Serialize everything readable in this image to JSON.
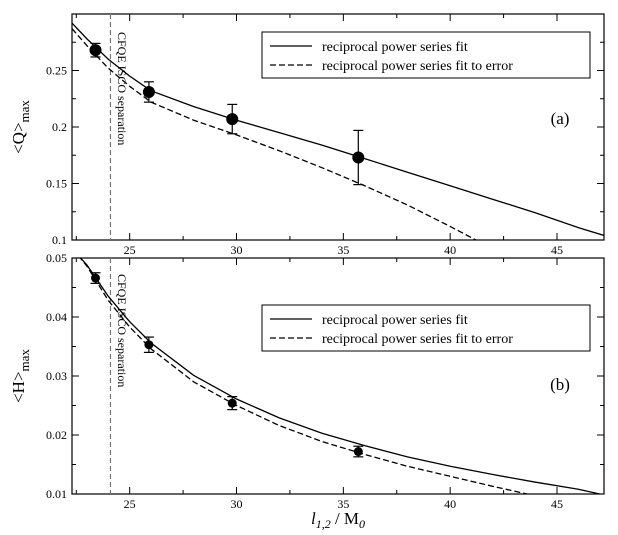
{
  "chart_data": [
    {
      "type": "line",
      "panel_label": "(a)",
      "ylabel": "<Q>",
      "ylabel_sub": "max",
      "xlim": [
        22.3,
        47.2
      ],
      "ylim": [
        0.1,
        0.3
      ],
      "xticks": [
        25,
        30,
        35,
        40,
        45
      ],
      "yticks": [
        0.1,
        0.15,
        0.2,
        0.25
      ],
      "ytick_labels": [
        "0.1",
        "0.15",
        "0.2",
        "0.25"
      ],
      "legend_position": "top-right",
      "vline": {
        "x": 24.1,
        "label": "CFQE ISCO separation"
      },
      "series": [
        {
          "name": "reciprocal power series fit",
          "style": "solid",
          "x": [
            22.3,
            23.0,
            24.0,
            25.0,
            26.0,
            28.0,
            30.0,
            32.0,
            34.0,
            36.0,
            38.0,
            40.0,
            42.0,
            44.0,
            46.0,
            47.2
          ],
          "y": [
            0.292,
            0.278,
            0.26,
            0.245,
            0.232,
            0.218,
            0.206,
            0.195,
            0.184,
            0.172,
            0.16,
            0.148,
            0.136,
            0.124,
            0.111,
            0.104
          ]
        },
        {
          "name": "reciprocal power series fit to error",
          "style": "dashed",
          "x": [
            22.3,
            23.0,
            24.0,
            25.0,
            26.0,
            28.0,
            30.0,
            32.0,
            34.0,
            36.0,
            38.0,
            40.0,
            41.2
          ],
          "y": [
            0.287,
            0.272,
            0.252,
            0.236,
            0.222,
            0.206,
            0.193,
            0.179,
            0.164,
            0.148,
            0.131,
            0.112,
            0.1
          ]
        }
      ],
      "points": [
        {
          "x": 23.4,
          "y": 0.268,
          "err": 0.006
        },
        {
          "x": 25.9,
          "y": 0.231,
          "err": 0.009
        },
        {
          "x": 29.8,
          "y": 0.207,
          "err": 0.013
        },
        {
          "x": 35.7,
          "y": 0.173,
          "err": 0.024
        }
      ]
    },
    {
      "type": "line",
      "panel_label": "(b)",
      "ylabel": "<H>",
      "ylabel_sub": "max",
      "xlabel": "l",
      "xlabel_sub": "1,2",
      "xlabel_mid": " / M",
      "xlabel_sub2": "0",
      "xlim": [
        22.3,
        47.2
      ],
      "ylim": [
        0.01,
        0.05
      ],
      "xticks": [
        25,
        30,
        35,
        40,
        45
      ],
      "yticks": [
        0.01,
        0.02,
        0.03,
        0.04,
        0.05
      ],
      "ytick_labels": [
        "0.01",
        "0.02",
        "0.03",
        "0.04",
        "0.05"
      ],
      "legend_position": "center-right",
      "vline": {
        "x": 24.1,
        "label": "CFQE ISCO separation"
      },
      "series": [
        {
          "name": "reciprocal power series fit",
          "style": "solid",
          "x": [
            22.6,
            23.0,
            24.0,
            25.0,
            26.0,
            28.0,
            30.0,
            32.0,
            34.0,
            36.0,
            38.0,
            40.0,
            42.0,
            44.0,
            46.0,
            47.0
          ],
          "y": [
            0.0504,
            0.0488,
            0.0435,
            0.0392,
            0.0356,
            0.0301,
            0.0261,
            0.0229,
            0.0203,
            0.0182,
            0.0163,
            0.0147,
            0.0133,
            0.012,
            0.0108,
            0.01
          ]
        },
        {
          "name": "reciprocal power series fit to error",
          "style": "dashed",
          "x": [
            22.6,
            23.0,
            24.0,
            25.0,
            26.0,
            28.0,
            30.0,
            32.0,
            34.0,
            36.0,
            38.0,
            40.0,
            42.0,
            43.6
          ],
          "y": [
            0.0504,
            0.0486,
            0.0428,
            0.0383,
            0.0346,
            0.029,
            0.025,
            0.0216,
            0.0189,
            0.0167,
            0.0147,
            0.013,
            0.0113,
            0.01
          ]
        }
      ],
      "points": [
        {
          "x": 23.4,
          "y": 0.0466,
          "err": 0.0009
        },
        {
          "x": 25.9,
          "y": 0.0353,
          "err": 0.0013
        },
        {
          "x": 29.8,
          "y": 0.0254,
          "err": 0.0011
        },
        {
          "x": 35.7,
          "y": 0.0172,
          "err": 0.0009
        }
      ]
    }
  ]
}
